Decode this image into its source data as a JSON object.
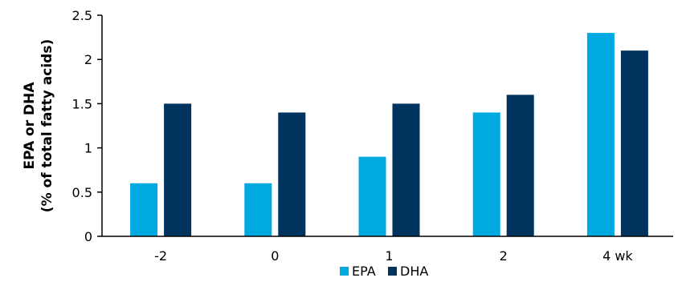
{
  "chart_data": {
    "type": "bar",
    "categories": [
      "-2",
      "0",
      "1",
      "2",
      "4 wk"
    ],
    "series": [
      {
        "name": "EPA",
        "values": [
          0.6,
          0.6,
          0.9,
          1.4,
          2.3
        ],
        "color": "#00a9e0"
      },
      {
        "name": "DHA",
        "values": [
          1.5,
          1.4,
          1.5,
          1.6,
          2.1
        ],
        "color": "#00335e"
      }
    ],
    "ylabel_line1": "EPA or DHA",
    "ylabel_line2": "(% of total fatty acids)",
    "xlabel": "",
    "title": "",
    "ylim": [
      0,
      2.5
    ],
    "yticks": [
      0,
      0.5,
      1,
      1.5,
      2,
      2.5
    ],
    "ytick_labels": [
      "0",
      "0.5",
      "1",
      "1.5",
      "2",
      "2.5"
    ],
    "grid": false,
    "legend_position": "bottom-center"
  }
}
